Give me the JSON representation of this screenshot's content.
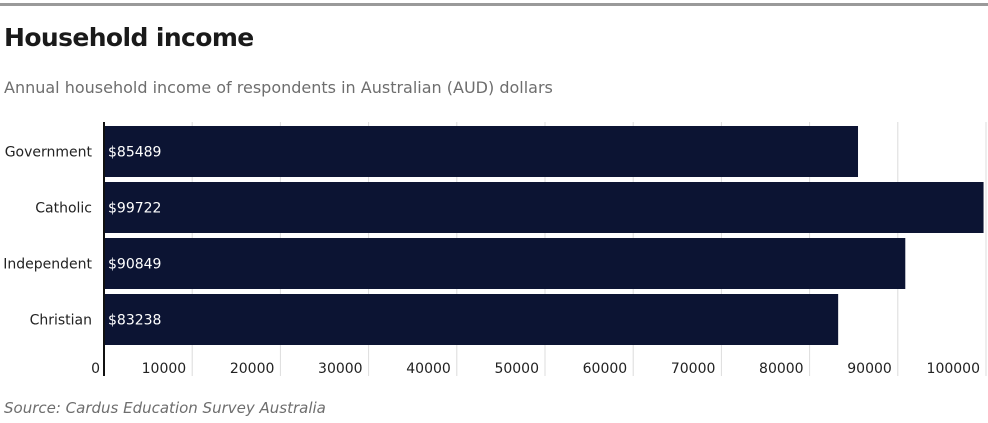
{
  "header": {
    "title": "Household income",
    "subtitle": "Annual household income of respondents in Australian (AUD) dollars"
  },
  "footer": {
    "source": "Source: Cardus Education Survey Australia"
  },
  "colors": {
    "bar": "#0c1433",
    "grid": "#dcdcdc",
    "axis": "#111111",
    "label_on_bar": "#ffffff"
  },
  "chart_data": {
    "type": "bar",
    "orientation": "horizontal",
    "categories": [
      "Government",
      "Catholic",
      "Independent",
      "Christian"
    ],
    "values": [
      85489,
      99722,
      90849,
      83238
    ],
    "data_labels": [
      "$85489",
      "$99722",
      "$90849",
      "$83238"
    ],
    "xlim": [
      0,
      100000
    ],
    "xticks": [
      0,
      10000,
      20000,
      30000,
      40000,
      50000,
      60000,
      70000,
      80000,
      90000,
      100000
    ],
    "grid": true,
    "legend": "none"
  }
}
